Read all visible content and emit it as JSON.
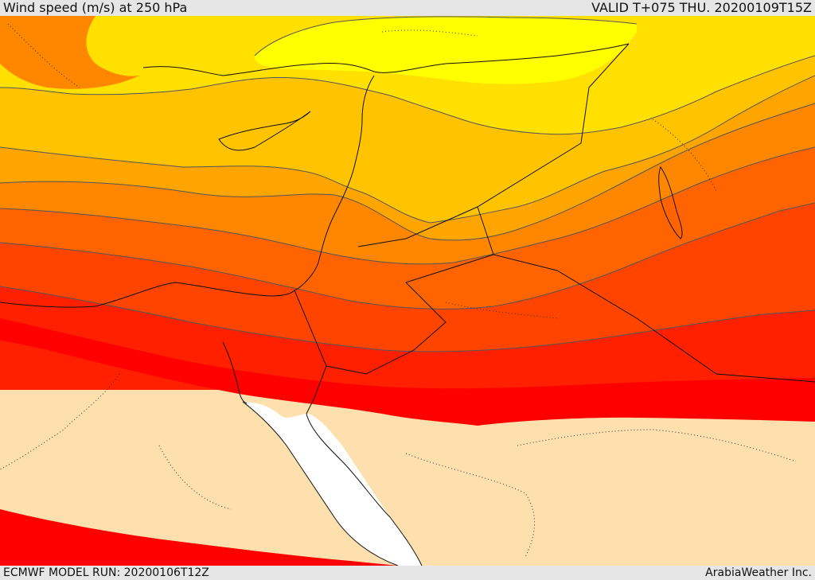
{
  "header": {
    "title": "Wind speed (m/s) at 250 hPa",
    "valid": "VALID T+075 THU. 20200109T15Z"
  },
  "footer": {
    "model_run": "ECMWF MODEL RUN: 20200106T12Z",
    "credit": "ArabiaWeather Inc."
  },
  "colors": {
    "calm": "#fde0ad",
    "sea_white": "#ffffff",
    "band_1": "#ffff00",
    "band_2": "#ffe000",
    "band_3": "#ffc300",
    "band_4": "#ffa500",
    "band_5": "#ff8700",
    "band_6": "#ff6400",
    "band_7": "#ff4400",
    "band_8": "#ff2000",
    "band_9": "#ff0000",
    "contour": "#555555",
    "coast": "#111111"
  }
}
